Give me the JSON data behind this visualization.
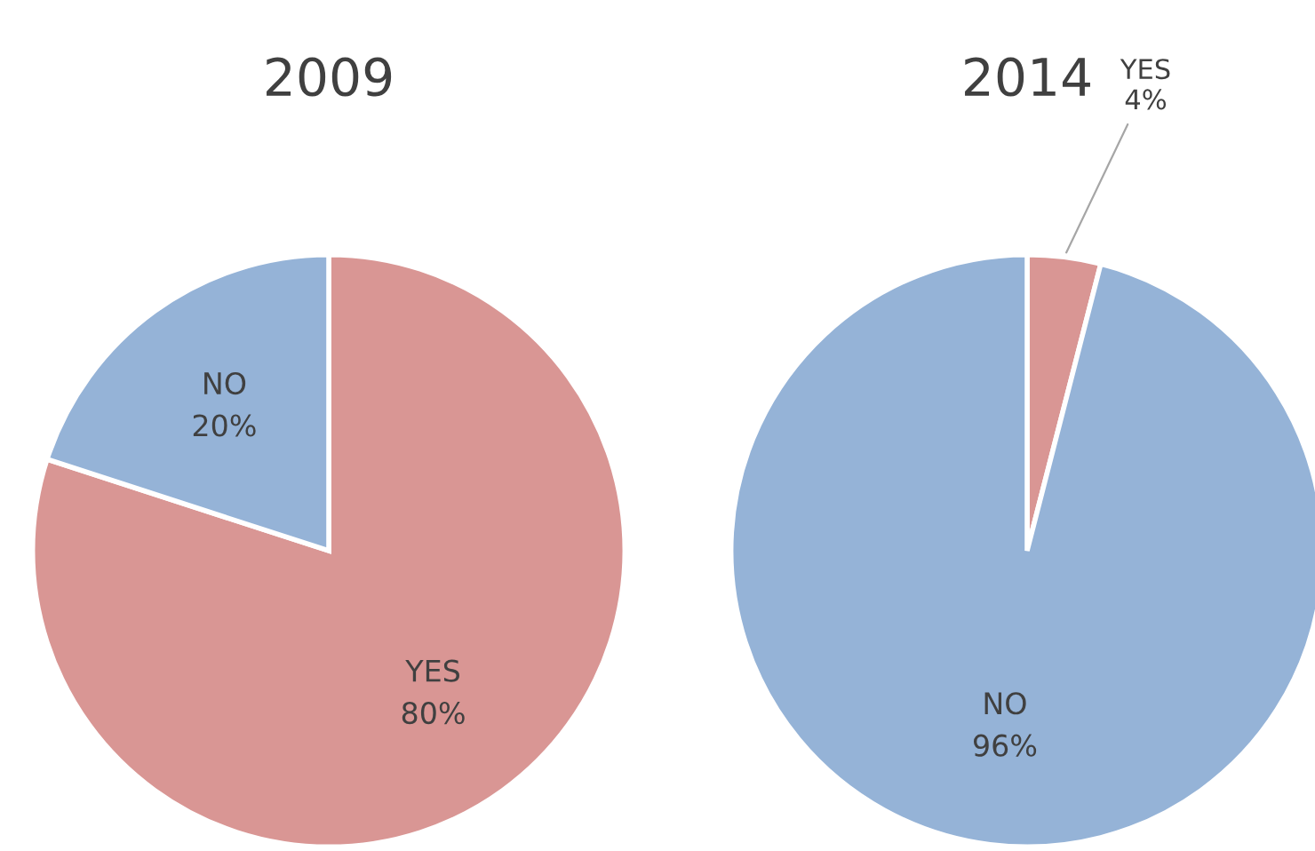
{
  "chart_data": [
    {
      "type": "pie",
      "title": "2009",
      "categories": [
        "YES",
        "NO"
      ],
      "values": [
        80,
        20
      ],
      "colors": [
        "#d99694",
        "#95b3d7"
      ],
      "value_labels": [
        "80%",
        "20%"
      ]
    },
    {
      "type": "pie",
      "title": "2014",
      "categories": [
        "YES",
        "NO"
      ],
      "values": [
        4,
        96
      ],
      "colors": [
        "#d99694",
        "#95b3d7"
      ],
      "value_labels": [
        "4%",
        "96%"
      ]
    }
  ]
}
